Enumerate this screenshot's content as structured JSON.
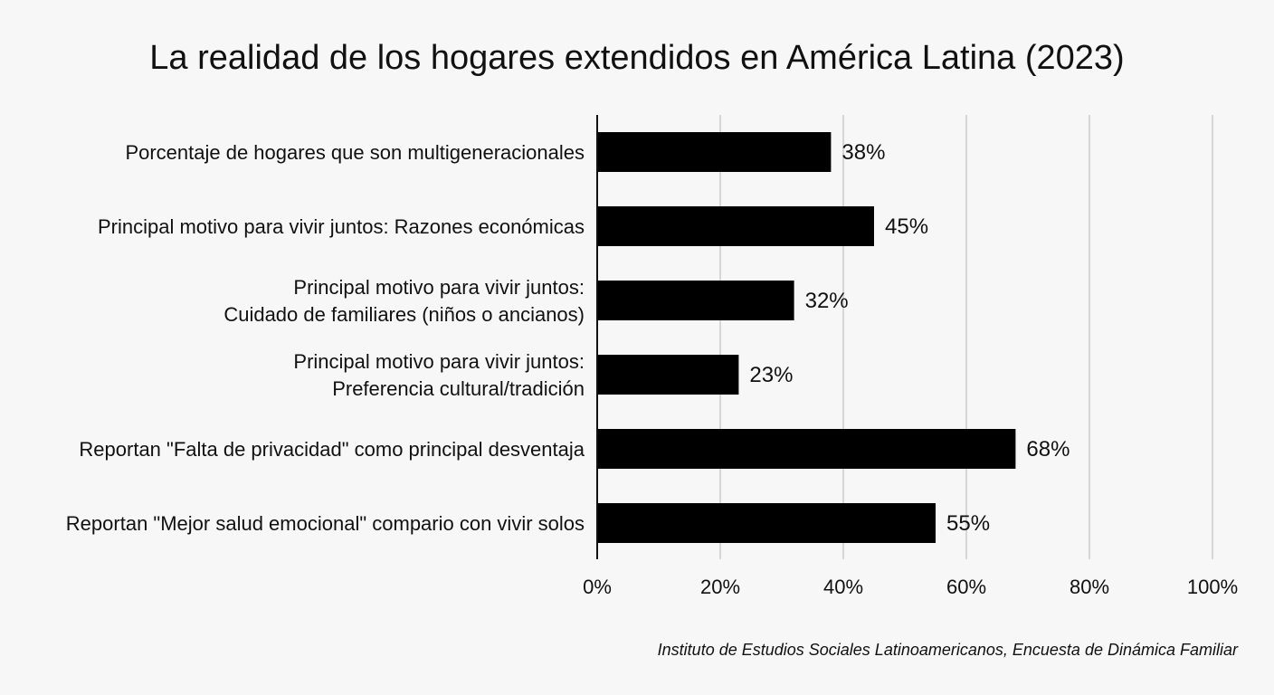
{
  "title": "La realidad de los hogares extendidos en América Latina (2023)",
  "source": "Instituto de Estudios Sociales Latinoamericanos, Encuesta de Dinámica Familiar",
  "colors": {
    "bar": "#000000",
    "grid": "#cccccc",
    "axis": "#111111",
    "background": "#f7f7f7"
  },
  "chart_data": {
    "type": "bar",
    "orientation": "horizontal",
    "categories": [
      [
        "Porcentaje de hogares que son multigeneracionales"
      ],
      [
        "Principal motivo para vivir juntos: Razones económicas"
      ],
      [
        "Principal motivo para vivir juntos:",
        "Cuidado de familiares (niños o ancianos)"
      ],
      [
        "Principal motivo para vivir juntos:",
        "Preferencia cultural/tradición"
      ],
      [
        "Reportan \"Falta de privacidad\" como principal desventaja"
      ],
      [
        "Reportan \"Mejor salud emocional\" compario con vivir solos"
      ]
    ],
    "values": [
      38,
      45,
      32,
      23,
      68,
      55
    ],
    "value_labels": [
      "38%",
      "45%",
      "32%",
      "23%",
      "68%",
      "55%"
    ],
    "xlim": [
      0,
      100
    ],
    "xticks": [
      0,
      20,
      40,
      60,
      80,
      100
    ],
    "xtick_labels": [
      "0%",
      "20%",
      "40%",
      "60%",
      "80%",
      "100%"
    ],
    "grid": "vertical",
    "legend": "none"
  }
}
